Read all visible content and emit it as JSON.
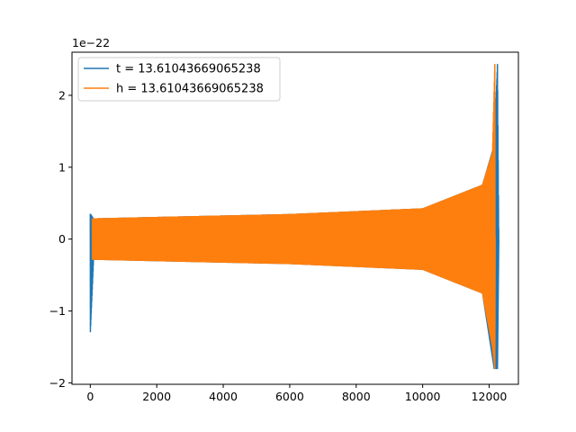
{
  "chart_data": {
    "type": "line",
    "title": "",
    "xlabel": "",
    "ylabel": "",
    "offset_text": "1e−22",
    "xlim": [
      -550,
      12880
    ],
    "ylim": [
      -2.02,
      2.6
    ],
    "xticks": [
      0,
      2000,
      4000,
      6000,
      8000,
      10000,
      12000
    ],
    "xtick_labels": [
      "0",
      "2000",
      "4000",
      "6000",
      "8000",
      "10000",
      "12000"
    ],
    "yticks": [
      -2,
      -1,
      0,
      1,
      2
    ],
    "ytick_labels": [
      "−2",
      "−1",
      "0",
      "1",
      "2"
    ],
    "grid": false,
    "legend_position": "upper-left",
    "series": [
      {
        "name": "t = 13.61043669065238",
        "color": "#1f77b4",
        "description": "waveform (plotted against sample index)",
        "x_range": [
          0,
          12290
        ],
        "envelope": [
          {
            "x": 0,
            "lower": -1.33,
            "upper": 0.35
          },
          {
            "x": 100,
            "lower": -0.28,
            "upper": 0.28
          },
          {
            "x": 2000,
            "lower": -0.3,
            "upper": 0.3
          },
          {
            "x": 6000,
            "lower": -0.34,
            "upper": 0.34
          },
          {
            "x": 10000,
            "lower": -0.42,
            "upper": 0.42
          },
          {
            "x": 11800,
            "lower": -0.75,
            "upper": 0.75
          },
          {
            "x": 12150,
            "lower": -1.8,
            "upper": 1.3
          },
          {
            "x": 12250,
            "lower": -1.8,
            "upper": 2.43
          },
          {
            "x": 12290,
            "lower": 0,
            "upper": 0
          }
        ]
      },
      {
        "name": "h = 13.61043669065238",
        "color": "#ff7f0e",
        "description": "chirp waveform",
        "x_range": [
          60,
          12180
        ],
        "envelope": [
          {
            "x": 60,
            "lower": -0.28,
            "upper": 0.28
          },
          {
            "x": 2000,
            "lower": -0.3,
            "upper": 0.3
          },
          {
            "x": 6000,
            "lower": -0.34,
            "upper": 0.34
          },
          {
            "x": 10000,
            "lower": -0.42,
            "upper": 0.42
          },
          {
            "x": 11800,
            "lower": -0.75,
            "upper": 0.75
          },
          {
            "x": 12100,
            "lower": -1.5,
            "upper": 1.2
          },
          {
            "x": 12170,
            "lower": -1.8,
            "upper": 2.43
          },
          {
            "x": 12180,
            "lower": 0,
            "upper": 0
          }
        ]
      }
    ]
  }
}
